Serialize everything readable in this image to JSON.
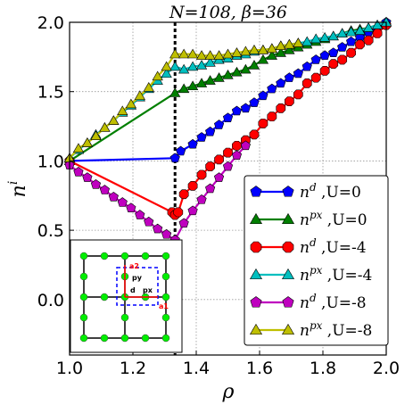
{
  "chart_data": {
    "type": "line",
    "title": "N=108, β=36",
    "xlabel": "ρ",
    "ylabel": "n^i",
    "xlim": [
      1.0,
      2.0
    ],
    "ylim": [
      -0.4,
      2.0
    ],
    "xticks": [
      "1.0",
      "1.2",
      "1.4",
      "1.6",
      "1.8",
      "2.0"
    ],
    "yticks": [
      "0.0",
      "0.5",
      "1.0",
      "1.5",
      "2.0"
    ],
    "grid": true,
    "legend_position": "bottom-right",
    "vline_x": 1.333,
    "series": [
      {
        "name": "n^d ,U=0",
        "color": "#0000ff",
        "marker": "pentagon",
        "x": [
          1.0,
          1.333,
          1.351,
          1.389,
          1.417,
          1.444,
          1.472,
          1.5,
          1.528,
          1.556,
          1.583,
          1.611,
          1.639,
          1.667,
          1.694,
          1.722,
          1.75,
          1.778,
          1.806,
          1.833,
          1.861,
          1.889,
          1.917,
          1.944,
          1.972,
          2.0
        ],
        "y": [
          1.0,
          1.02,
          1.07,
          1.12,
          1.17,
          1.21,
          1.26,
          1.31,
          1.36,
          1.38,
          1.42,
          1.47,
          1.52,
          1.56,
          1.6,
          1.63,
          1.68,
          1.73,
          1.76,
          1.78,
          1.82,
          1.86,
          1.89,
          1.93,
          1.96,
          2.0
        ]
      },
      {
        "name": "n^px ,U=0",
        "color": "#007f00",
        "marker": "triangle",
        "x": [
          1.0,
          1.333,
          1.361,
          1.389,
          1.417,
          1.444,
          1.472,
          1.5,
          1.528,
          1.556,
          1.583,
          1.611,
          1.639,
          1.667,
          1.694,
          1.722,
          1.75,
          1.778,
          1.806,
          1.833,
          1.861,
          1.889,
          1.917,
          1.944,
          1.972,
          2.0
        ],
        "y": [
          1.0,
          1.49,
          1.52,
          1.54,
          1.56,
          1.58,
          1.6,
          1.62,
          1.64,
          1.66,
          1.69,
          1.73,
          1.76,
          1.78,
          1.8,
          1.82,
          1.84,
          1.86,
          1.88,
          1.9,
          1.92,
          1.94,
          1.95,
          1.96,
          1.98,
          2.0
        ]
      },
      {
        "name": "n^d ,U=-4",
        "color": "#ff0000",
        "marker": "octagon",
        "x": [
          1.0,
          1.324,
          1.333,
          1.343,
          1.361,
          1.389,
          1.417,
          1.444,
          1.472,
          1.5,
          1.528,
          1.556,
          1.583,
          1.611,
          1.639,
          1.667,
          1.694,
          1.722,
          1.75,
          1.778,
          1.806,
          1.833,
          1.861,
          1.889,
          1.917,
          1.944,
          1.972,
          2.0
        ],
        "y": [
          1.0,
          0.63,
          0.61,
          0.63,
          0.76,
          0.82,
          0.9,
          0.96,
          1.01,
          1.06,
          1.11,
          1.15,
          1.19,
          1.27,
          1.32,
          1.38,
          1.43,
          1.48,
          1.56,
          1.6,
          1.65,
          1.7,
          1.73,
          1.78,
          1.84,
          1.87,
          1.92,
          1.98
        ]
      },
      {
        "name": "n^px ,U=-4",
        "color": "#00bfbf",
        "marker": "triangle",
        "x": [
          1.0,
          1.028,
          1.056,
          1.083,
          1.111,
          1.139,
          1.167,
          1.194,
          1.222,
          1.25,
          1.278,
          1.306,
          1.333,
          1.361,
          1.389,
          1.417,
          1.444,
          1.472,
          1.5,
          1.528,
          1.556,
          1.583,
          1.611,
          1.639,
          1.667,
          1.694,
          1.722,
          1.75,
          1.778,
          1.806,
          1.833,
          1.861,
          1.889,
          1.917,
          1.944,
          1.972,
          2.0
        ],
        "y": [
          1.02,
          1.08,
          1.13,
          1.19,
          1.24,
          1.29,
          1.35,
          1.4,
          1.46,
          1.52,
          1.58,
          1.63,
          1.68,
          1.66,
          1.68,
          1.69,
          1.71,
          1.73,
          1.74,
          1.76,
          1.77,
          1.79,
          1.8,
          1.81,
          1.83,
          1.84,
          1.85,
          1.86,
          1.88,
          1.89,
          1.9,
          1.92,
          1.93,
          1.94,
          1.96,
          1.98,
          2.0
        ]
      },
      {
        "name": "n^d ,U=-8",
        "color": "#bf00bf",
        "marker": "pentagon",
        "x": [
          1.0,
          1.028,
          1.056,
          1.083,
          1.111,
          1.139,
          1.167,
          1.194,
          1.222,
          1.25,
          1.278,
          1.306,
          1.333,
          1.361,
          1.389,
          1.417,
          1.444,
          1.472,
          1.5,
          1.528,
          1.556
        ],
        "y": [
          0.97,
          0.92,
          0.88,
          0.83,
          0.79,
          0.74,
          0.7,
          0.66,
          0.61,
          0.56,
          0.51,
          0.47,
          0.43,
          0.55,
          0.64,
          0.72,
          0.8,
          0.88,
          0.96,
          1.04,
          1.11
        ]
      },
      {
        "name": "n^px ,U=-8",
        "color": "#bfbf00",
        "marker": "triangle",
        "x": [
          1.0,
          1.028,
          1.056,
          1.083,
          1.111,
          1.139,
          1.167,
          1.194,
          1.222,
          1.25,
          1.278,
          1.306,
          1.333,
          1.361,
          1.389,
          1.417,
          1.444,
          1.472,
          1.5,
          1.528,
          1.556,
          1.583,
          1.611,
          1.639,
          1.667,
          1.694,
          1.722
        ],
        "y": [
          1.02,
          1.09,
          1.13,
          1.18,
          1.24,
          1.29,
          1.36,
          1.41,
          1.47,
          1.53,
          1.61,
          1.68,
          1.77,
          1.77,
          1.77,
          1.76,
          1.76,
          1.76,
          1.77,
          1.78,
          1.79,
          1.8,
          1.8,
          1.81,
          1.83,
          1.84,
          1.85
        ]
      }
    ]
  },
  "inset": {
    "labels": {
      "py": "py",
      "d": "d",
      "px": "px",
      "a1": "a1",
      "a2": "a2"
    },
    "colors": {
      "site": "#00ee00",
      "vector": "#ff0000",
      "cell": "#0000ff"
    }
  }
}
